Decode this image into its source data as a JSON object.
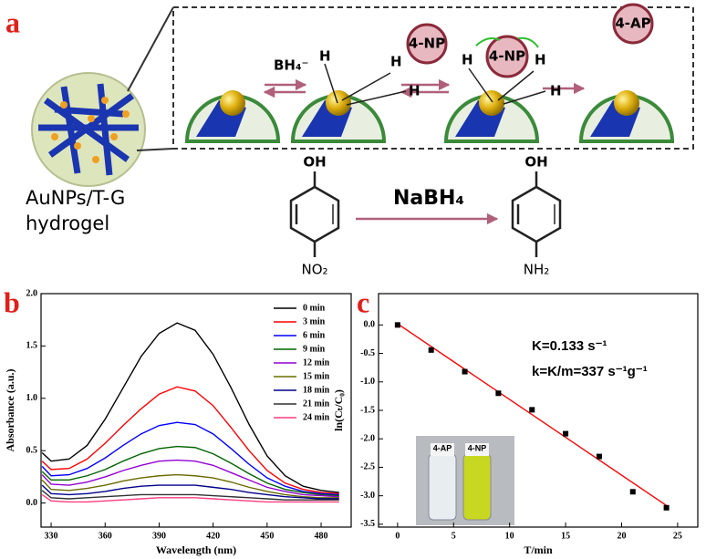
{
  "scheme": {
    "panel_label": "a",
    "material": [
      "AuNPs/T-G",
      "hydrogel"
    ],
    "reductant": "BH₄⁻",
    "hydrogen": [
      "H",
      "H",
      "H",
      "H",
      "H",
      "H",
      "H"
    ],
    "np": [
      "4-NP",
      "4-NP"
    ],
    "ap": "4-AP",
    "reagent": "NaBH₄",
    "oh": [
      "OH",
      "OH"
    ],
    "nitro": "NO₂",
    "amine": "NH₂"
  },
  "chart_data": [
    {
      "type": "line",
      "panel_label": "b",
      "x_label": "Wavelength (nm)",
      "y_label": "Absorbance (a.u.)",
      "x": [
        325,
        330,
        340,
        350,
        360,
        370,
        380,
        390,
        400,
        410,
        420,
        430,
        440,
        450,
        460,
        470,
        480,
        490
      ],
      "series": [
        {
          "name": "0 min",
          "color": "#000000",
          "values": [
            0.48,
            0.4,
            0.42,
            0.55,
            0.8,
            1.1,
            1.4,
            1.62,
            1.72,
            1.65,
            1.42,
            1.1,
            0.75,
            0.45,
            0.26,
            0.16,
            0.12,
            0.1
          ]
        },
        {
          "name": "3 min",
          "color": "#ff0000",
          "values": [
            0.4,
            0.32,
            0.33,
            0.42,
            0.57,
            0.74,
            0.9,
            1.04,
            1.11,
            1.07,
            0.93,
            0.72,
            0.5,
            0.31,
            0.19,
            0.13,
            0.1,
            0.09
          ]
        },
        {
          "name": "6 min",
          "color": "#0000ff",
          "values": [
            0.35,
            0.26,
            0.27,
            0.33,
            0.43,
            0.55,
            0.66,
            0.74,
            0.77,
            0.75,
            0.66,
            0.52,
            0.37,
            0.24,
            0.16,
            0.11,
            0.09,
            0.08
          ]
        },
        {
          "name": "9 min",
          "color": "#006400",
          "values": [
            0.3,
            0.22,
            0.22,
            0.26,
            0.32,
            0.4,
            0.47,
            0.52,
            0.54,
            0.53,
            0.47,
            0.38,
            0.28,
            0.19,
            0.13,
            0.1,
            0.08,
            0.07
          ]
        },
        {
          "name": "12 min",
          "color": "#9400d3",
          "values": [
            0.27,
            0.18,
            0.17,
            0.2,
            0.25,
            0.31,
            0.36,
            0.4,
            0.41,
            0.4,
            0.36,
            0.29,
            0.22,
            0.15,
            0.11,
            0.08,
            0.07,
            0.06
          ]
        },
        {
          "name": "15 min",
          "color": "#6b6b00",
          "values": [
            0.22,
            0.13,
            0.12,
            0.14,
            0.17,
            0.21,
            0.24,
            0.26,
            0.27,
            0.26,
            0.24,
            0.2,
            0.15,
            0.11,
            0.08,
            0.06,
            0.05,
            0.05
          ]
        },
        {
          "name": "18 min",
          "color": "#00008b",
          "values": [
            0.17,
            0.09,
            0.08,
            0.09,
            0.11,
            0.14,
            0.16,
            0.17,
            0.17,
            0.17,
            0.15,
            0.13,
            0.1,
            0.08,
            0.06,
            0.05,
            0.04,
            0.04
          ]
        },
        {
          "name": "21 min",
          "color": "#303030",
          "values": [
            0.12,
            0.05,
            0.04,
            0.05,
            0.06,
            0.07,
            0.08,
            0.08,
            0.08,
            0.08,
            0.07,
            0.06,
            0.05,
            0.04,
            0.03,
            0.03,
            0.03,
            0.03
          ]
        },
        {
          "name": "24 min",
          "color": "#ff3d7f",
          "values": [
            0.08,
            0.02,
            0.01,
            0.01,
            0.02,
            0.03,
            0.04,
            0.05,
            0.05,
            0.05,
            0.04,
            0.03,
            0.02,
            0.01,
            0.01,
            0.01,
            0.01,
            0.01
          ]
        }
      ],
      "xlim": [
        324.4,
        496.7
      ],
      "xticks": [
        330,
        360,
        390,
        420,
        450,
        480
      ],
      "ylim": [
        -0.23,
        2.0
      ],
      "yticks": [
        {
          "value": 0,
          "label": "0.0"
        },
        0.5,
        {
          "value": 1,
          "label": "1.0"
        },
        1.5,
        {
          "value": 2,
          "label": "2.0"
        }
      ],
      "legend": "upper right"
    },
    {
      "type": "scatter",
      "panel_label": "c",
      "x_label": "T/min",
      "y_label": "ln(Cₜ/C₀)",
      "x": [
        0,
        3,
        6,
        9,
        12,
        15,
        18,
        21,
        24
      ],
      "values": [
        0,
        -0.44,
        -0.82,
        -1.2,
        -1.49,
        -1.91,
        -2.31,
        -2.93,
        -3.21
      ],
      "color": "#000000",
      "fit": {
        "x": [
          0,
          24
        ],
        "values": [
          0.02,
          -3.17
        ],
        "color": "#ff0000"
      },
      "annotations": [
        "K=0.133 s⁻¹",
        "k=K/m=337 s⁻¹g⁻¹"
      ],
      "inset_labels": [
        "4-AP",
        "4-NP"
      ],
      "xlim": [
        -1.7,
        26.8
      ],
      "xticks": [
        0,
        5,
        10,
        15,
        20,
        25
      ],
      "ylim": [
        -3.55,
        0.55
      ],
      "yticks": [
        {
          "value": 0,
          "label": "0.0"
        },
        -0.5,
        {
          "value": -1,
          "label": "-1.0"
        },
        -1.5,
        {
          "value": -2,
          "label": "-2.0"
        },
        -2.5,
        {
          "value": -3,
          "label": "-3.0"
        },
        -3.5
      ]
    }
  ]
}
